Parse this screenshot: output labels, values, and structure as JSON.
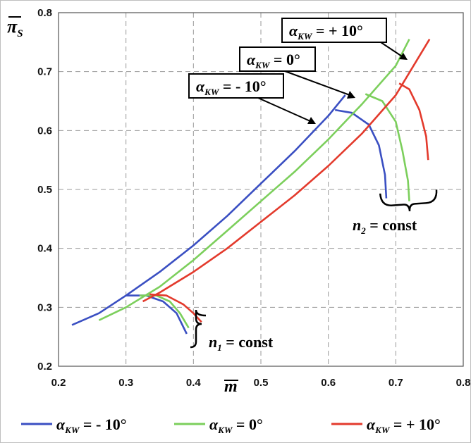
{
  "chart_data": {
    "type": "line",
    "xlabel": "m",
    "ylabel": "π",
    "ylabel_sub": "S",
    "xlim": [
      0.2,
      0.8
    ],
    "ylim": [
      0.2,
      0.8
    ],
    "x_ticks": [
      "0.2",
      "0.3",
      "0.4",
      "0.5",
      "0.6",
      "0.7",
      "0.8"
    ],
    "y_ticks": [
      "0.2",
      "0.3",
      "0.4",
      "0.5",
      "0.6",
      "0.7",
      "0.8"
    ],
    "grid": true,
    "legend_position": "bottom",
    "series": [
      {
        "key": "minus10",
        "name": "α_KW = - 10°",
        "color": "#3a4fc2",
        "line": [
          [
            0.22,
            0.27
          ],
          [
            0.26,
            0.29
          ],
          [
            0.3,
            0.32
          ],
          [
            0.35,
            0.36
          ],
          [
            0.4,
            0.405
          ],
          [
            0.45,
            0.455
          ],
          [
            0.5,
            0.51
          ],
          [
            0.55,
            0.565
          ],
          [
            0.6,
            0.625
          ],
          [
            0.625,
            0.66
          ]
        ],
        "speedlines": [
          [
            [
              0.3,
              0.32
            ],
            [
              0.33,
              0.32
            ],
            [
              0.355,
              0.31
            ],
            [
              0.375,
              0.29
            ],
            [
              0.39,
              0.255
            ]
          ],
          [
            [
              0.61,
              0.635
            ],
            [
              0.635,
              0.63
            ],
            [
              0.66,
              0.61
            ],
            [
              0.675,
              0.575
            ],
            [
              0.684,
              0.525
            ],
            [
              0.686,
              0.485
            ]
          ]
        ]
      },
      {
        "key": "zero",
        "name": "α_KW = 0°",
        "color": "#7ccf5c",
        "line": [
          [
            0.26,
            0.278
          ],
          [
            0.3,
            0.3
          ],
          [
            0.35,
            0.335
          ],
          [
            0.4,
            0.38
          ],
          [
            0.45,
            0.43
          ],
          [
            0.5,
            0.48
          ],
          [
            0.55,
            0.53
          ],
          [
            0.6,
            0.585
          ],
          [
            0.65,
            0.645
          ],
          [
            0.7,
            0.71
          ],
          [
            0.72,
            0.755
          ]
        ],
        "speedlines": [
          [
            [
              0.32,
              0.32
            ],
            [
              0.345,
              0.32
            ],
            [
              0.365,
              0.31
            ],
            [
              0.38,
              0.29
            ],
            [
              0.393,
              0.265
            ]
          ],
          [
            [
              0.655,
              0.662
            ],
            [
              0.68,
              0.65
            ],
            [
              0.7,
              0.615
            ],
            [
              0.71,
              0.565
            ],
            [
              0.718,
              0.515
            ],
            [
              0.72,
              0.48
            ]
          ]
        ]
      },
      {
        "key": "plus10",
        "name": "α_KW = + 10°",
        "color": "#e33a2c",
        "line": [
          [
            0.325,
            0.31
          ],
          [
            0.35,
            0.325
          ],
          [
            0.4,
            0.36
          ],
          [
            0.45,
            0.4
          ],
          [
            0.5,
            0.445
          ],
          [
            0.55,
            0.49
          ],
          [
            0.6,
            0.54
          ],
          [
            0.65,
            0.595
          ],
          [
            0.7,
            0.66
          ],
          [
            0.75,
            0.755
          ]
        ],
        "speedlines": [
          [
            [
              0.335,
              0.322
            ],
            [
              0.36,
              0.32
            ],
            [
              0.385,
              0.305
            ],
            [
              0.4,
              0.29
            ],
            [
              0.412,
              0.275
            ]
          ],
          [
            [
              0.705,
              0.68
            ],
            [
              0.72,
              0.67
            ],
            [
              0.735,
              0.635
            ],
            [
              0.745,
              0.59
            ],
            [
              0.748,
              0.55
            ]
          ]
        ]
      }
    ],
    "annotations": [
      {
        "key": "m10",
        "prefix": "α",
        "sub": "KW",
        "rest": " = - 10°"
      },
      {
        "key": "z0",
        "prefix": "α",
        "sub": "KW",
        "rest": " = 0°"
      },
      {
        "key": "p10",
        "prefix": "α",
        "sub": "KW",
        "rest": " = + 10°"
      }
    ],
    "speed_labels": [
      {
        "key": "n1",
        "letter": "n",
        "sub": "1",
        "rest": " = const"
      },
      {
        "key": "n2",
        "letter": "n",
        "sub": "2",
        "rest": " = const"
      }
    ],
    "legend": [
      {
        "prefix": "α",
        "sub": "KW",
        "rest": " = - 10°",
        "color": "#3a4fc2"
      },
      {
        "prefix": "α",
        "sub": "KW",
        "rest": " = 0°",
        "color": "#7ccf5c"
      },
      {
        "prefix": "α",
        "sub": "KW",
        "rest": " = + 10°",
        "color": "#e33a2c"
      }
    ]
  }
}
